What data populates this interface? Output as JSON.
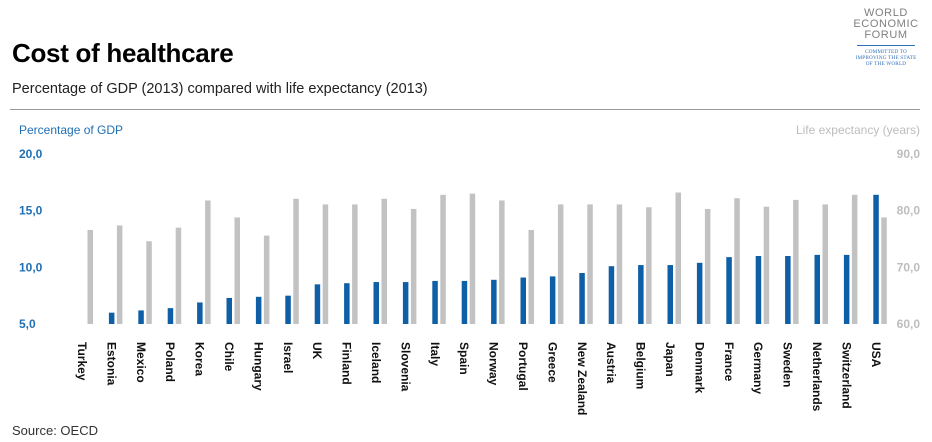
{
  "header": {
    "title": "Cost of healthcare",
    "subtitle": "Percentage of GDP (2013) compared with life expectancy (2013)"
  },
  "logo": {
    "line1": "WORLD",
    "line2": "ECONOMIC",
    "line3": "FORUM",
    "tagline1": "COMMITTED TO",
    "tagline2": "IMPROVING THE STATE",
    "tagline3": "OF THE WORLD"
  },
  "footer": {
    "source": "Source:  OECD"
  },
  "colors": {
    "gdp": "#0f5fa6",
    "life": "#c2c2c2",
    "left_axis": "#1f6fb5",
    "right_axis": "#bdbdbd"
  },
  "chart_data": {
    "type": "bar",
    "title": "Cost of healthcare",
    "left_axis": {
      "label": "Percentage of GDP",
      "ticks": [
        "20,0",
        "15,0",
        "10,0",
        "5,0"
      ],
      "range": [
        5,
        20
      ]
    },
    "right_axis": {
      "label": "Life expectancy (years)",
      "ticks": [
        "90,0",
        "80,0",
        "70,0",
        "60,0"
      ],
      "range": [
        60,
        90
      ]
    },
    "categories": [
      "Turkey",
      "Estonia",
      "Mexico",
      "Poland",
      "Korea",
      "Chile",
      "Hungary",
      "Israel",
      "UK",
      "Finland",
      "Iceland",
      "Slovenia",
      "Italy",
      "Spain",
      "Norway",
      "Portugal",
      "Greece",
      "New Zealand",
      "Austria",
      "Belgium",
      "Japan",
      "Denmark",
      "France",
      "Germany",
      "Sweden",
      "Netherlands",
      "Switzerland",
      "USA"
    ],
    "series": [
      {
        "name": "Percentage of GDP (2013)",
        "axis": "left",
        "values": [
          null,
          6.0,
          6.2,
          6.4,
          6.9,
          7.3,
          7.4,
          7.5,
          8.5,
          8.6,
          8.7,
          8.7,
          8.8,
          8.8,
          8.9,
          9.1,
          9.2,
          9.5,
          10.1,
          10.2,
          10.2,
          10.4,
          10.9,
          11.0,
          11.0,
          11.1,
          11.1,
          16.4
        ]
      },
      {
        "name": "Life expectancy (2013)",
        "axis": "right",
        "values": [
          76.6,
          77.4,
          74.6,
          77.0,
          81.8,
          78.8,
          75.6,
          82.1,
          81.1,
          81.1,
          82.1,
          80.3,
          82.8,
          83.0,
          81.8,
          76.6,
          81.1,
          81.1,
          81.1,
          80.6,
          83.2,
          80.3,
          82.2,
          80.7,
          81.9,
          81.1,
          82.8,
          78.8
        ]
      }
    ]
  }
}
